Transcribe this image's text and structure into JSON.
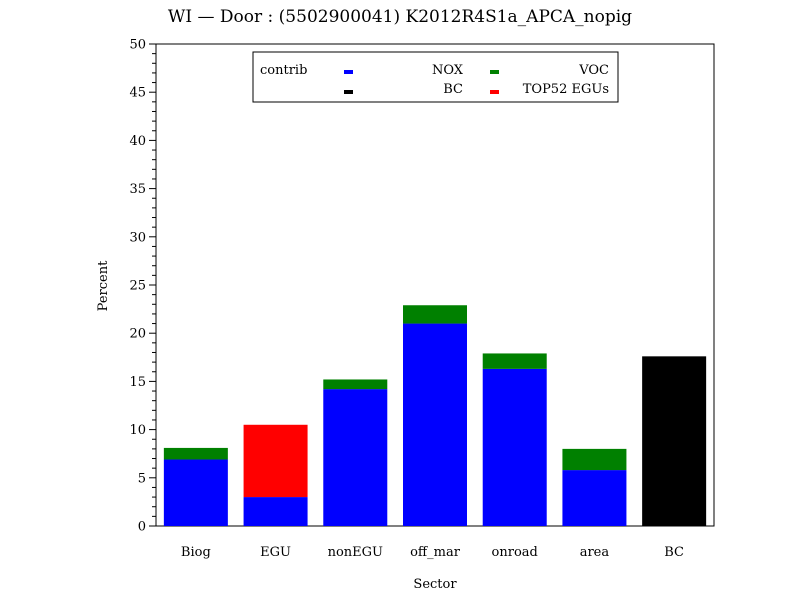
{
  "chart_data": {
    "type": "bar",
    "stacked": true,
    "title": "WI — Door : (5502900041) K2012R4S1a_APCA_nopig",
    "xlabel": "Sector",
    "ylabel": "Percent",
    "ylim": [
      0,
      50
    ],
    "yticks": [
      0,
      5,
      10,
      15,
      20,
      25,
      30,
      35,
      40,
      45,
      50
    ],
    "categories": [
      "Biog",
      "EGU",
      "nonEGU",
      "off_mar",
      "onroad",
      "area",
      "BC"
    ],
    "legend": {
      "title": "contrib",
      "placement": "top-center"
    },
    "series": [
      {
        "name": "NOX",
        "color": "#0000ff",
        "values": [
          6.9,
          3.0,
          14.2,
          21.0,
          16.3,
          5.8,
          0
        ]
      },
      {
        "name": "VOC",
        "color": "#008000",
        "values": [
          1.2,
          0,
          1.0,
          1.9,
          1.6,
          2.2,
          0
        ]
      },
      {
        "name": "BC",
        "color": "#000000",
        "values": [
          0,
          0,
          0,
          0,
          0,
          0,
          17.6
        ]
      },
      {
        "name": "TOP52 EGUs",
        "color": "#ff0000",
        "values": [
          0,
          7.5,
          0,
          0,
          0,
          0,
          0
        ]
      }
    ]
  }
}
